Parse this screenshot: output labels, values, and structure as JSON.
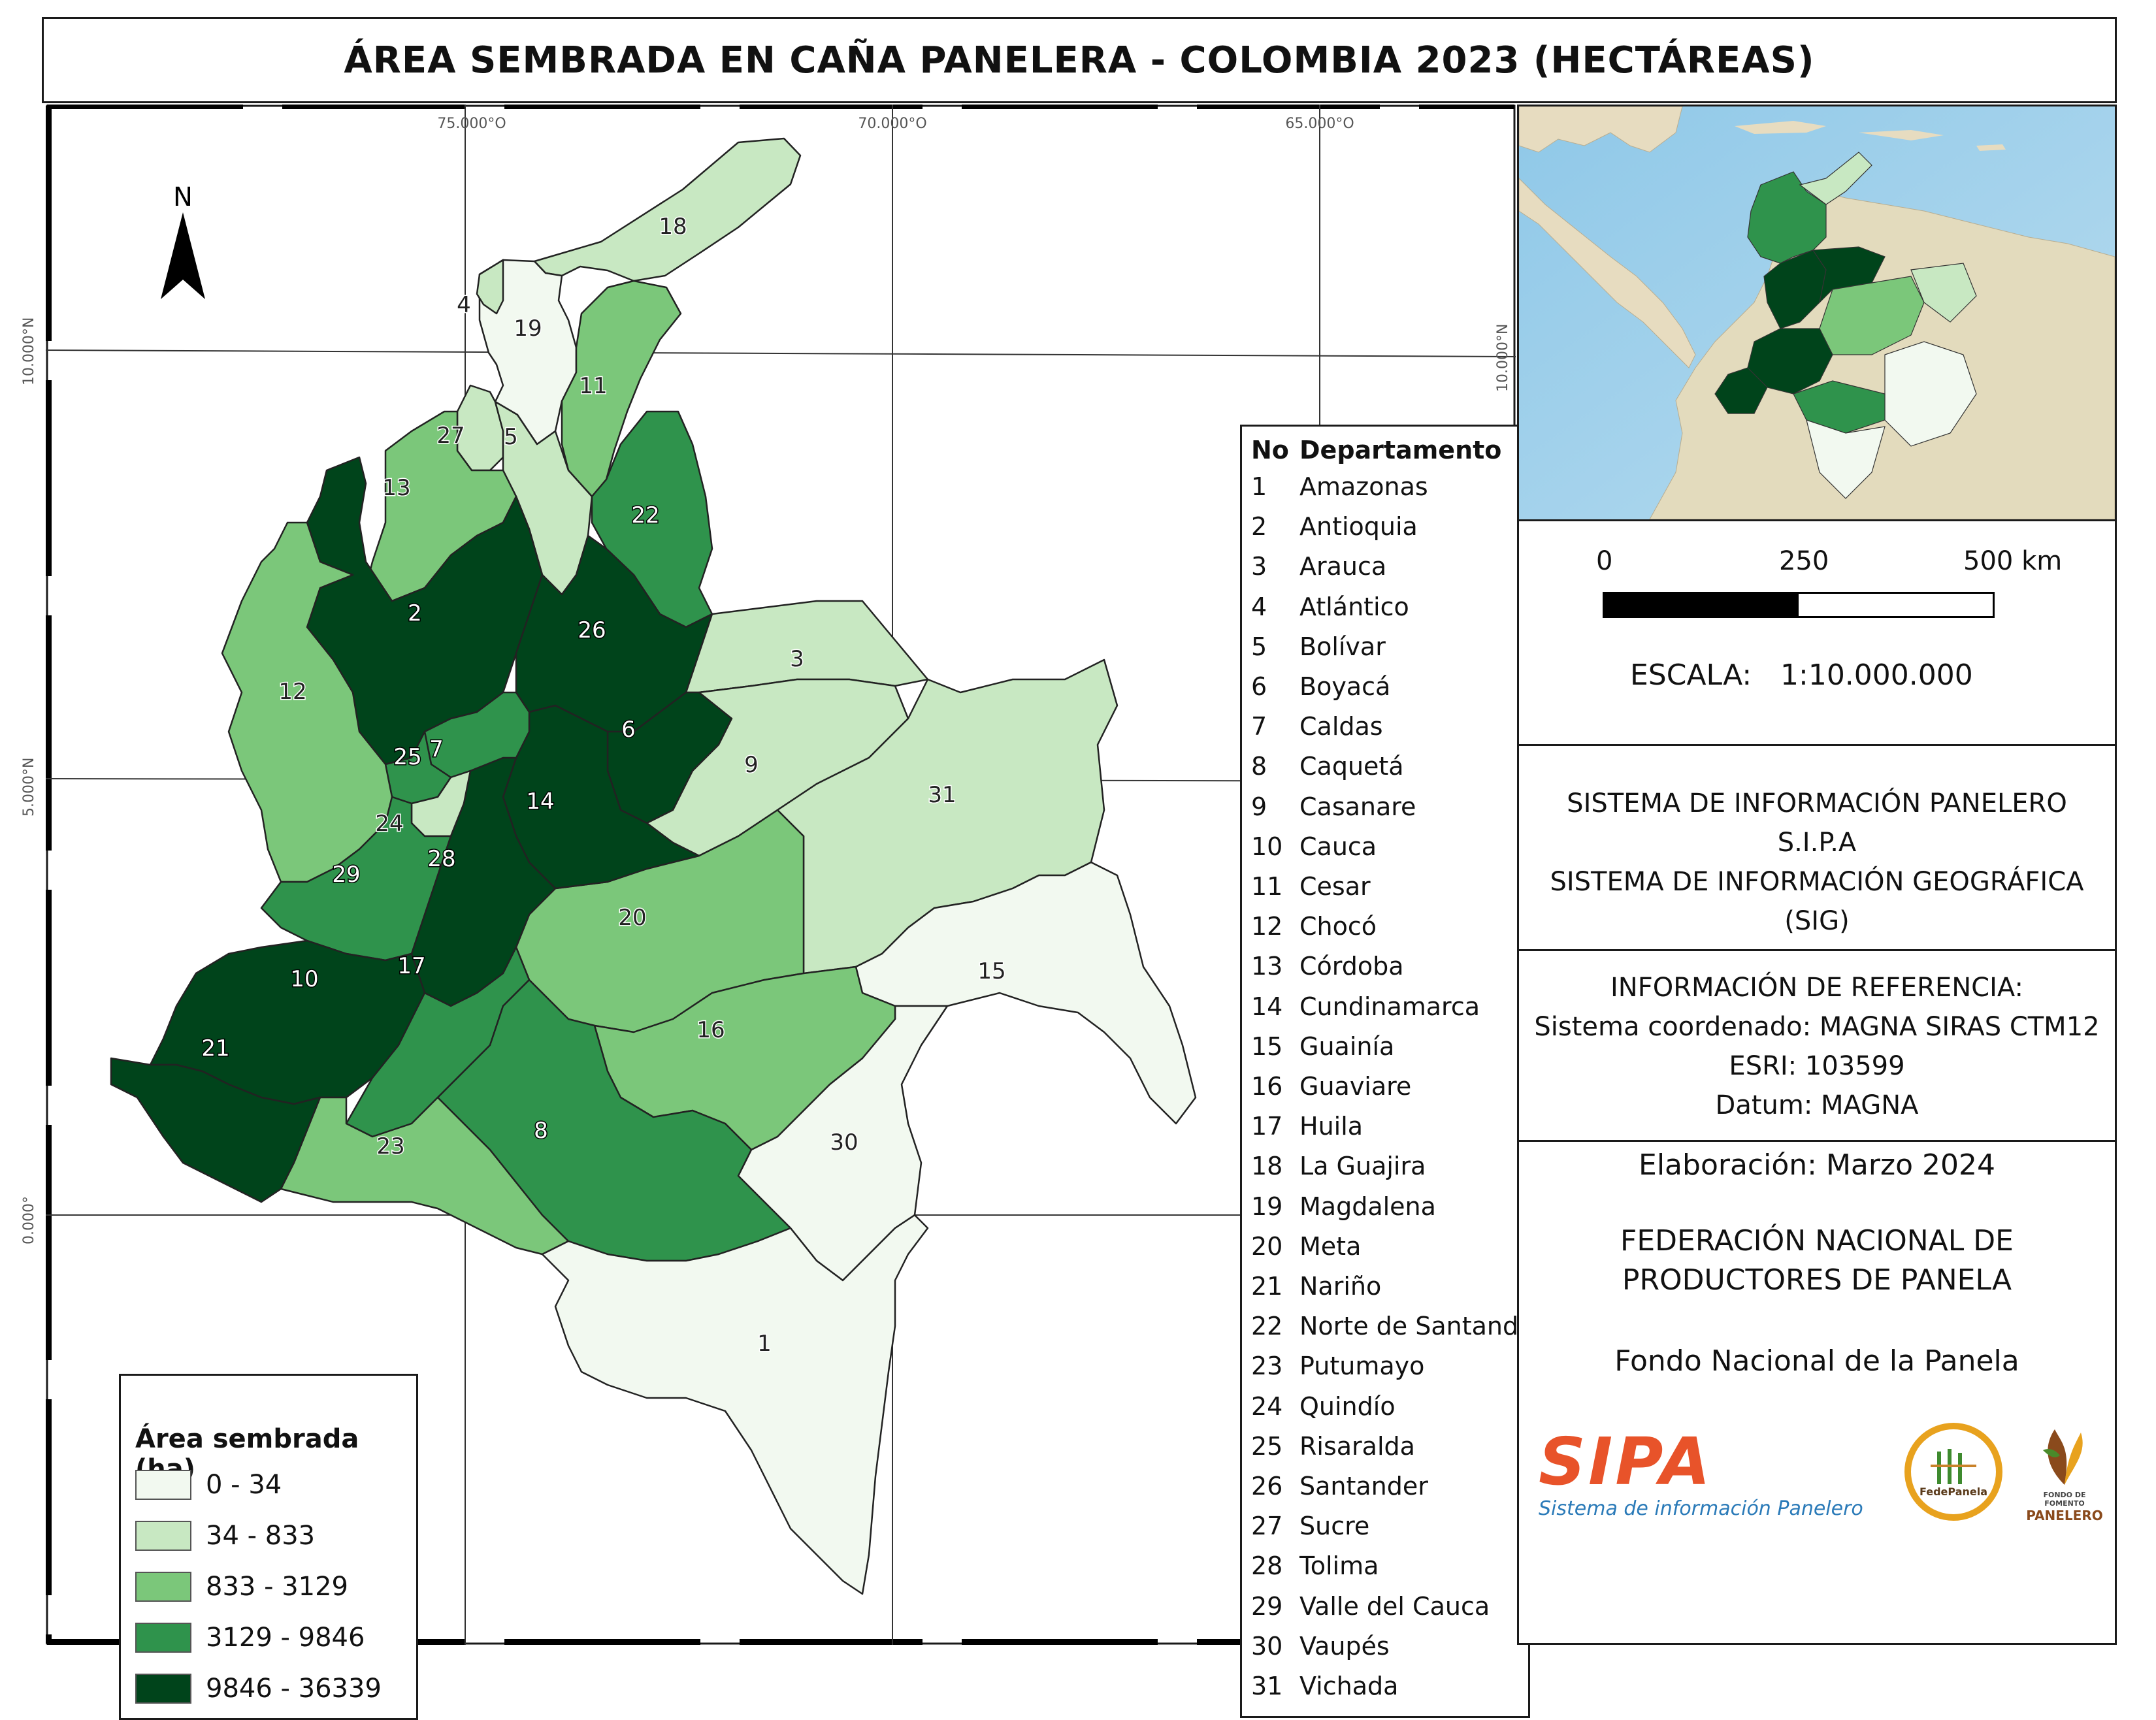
{
  "title": "ÁREA SEMBRADA EN CAÑA PANELERA - COLOMBIA 2023 (HECTÁREAS)",
  "graticule": {
    "lon_labels": [
      "75.000°O",
      "70.000°O",
      "65.000°O"
    ],
    "lat_labels": [
      "10.000°N",
      "5.000°N",
      "0.000°"
    ]
  },
  "north_arrow": "N",
  "legend_area": {
    "title": "Área sembrada (ha)",
    "classes": [
      {
        "label": "0 - 34",
        "color": "#f2f9f0"
      },
      {
        "label": "34 - 833",
        "color": "#c8e8c2"
      },
      {
        "label": "833 - 3129",
        "color": "#7bc77a"
      },
      {
        "label": "3129 - 9846",
        "color": "#2f934c"
      },
      {
        "label": "9846 - 36339",
        "color": "#00441b"
      }
    ]
  },
  "legend_departments": {
    "col_no": "No",
    "col_name": "Departamento",
    "rows": [
      {
        "no": "1",
        "name": "Amazonas"
      },
      {
        "no": "2",
        "name": "Antioquia"
      },
      {
        "no": "3",
        "name": "Arauca"
      },
      {
        "no": "4",
        "name": "Atlántico"
      },
      {
        "no": "5",
        "name": "Bolívar"
      },
      {
        "no": "6",
        "name": "Boyacá"
      },
      {
        "no": "7",
        "name": "Caldas"
      },
      {
        "no": "8",
        "name": "Caquetá"
      },
      {
        "no": "9",
        "name": "Casanare"
      },
      {
        "no": "10",
        "name": "Cauca"
      },
      {
        "no": "11",
        "name": "Cesar"
      },
      {
        "no": "12",
        "name": "Chocó"
      },
      {
        "no": "13",
        "name": "Córdoba"
      },
      {
        "no": "14",
        "name": "Cundinamarca"
      },
      {
        "no": "15",
        "name": "Guainía"
      },
      {
        "no": "16",
        "name": "Guaviare"
      },
      {
        "no": "17",
        "name": "Huila"
      },
      {
        "no": "18",
        "name": "La Guajira"
      },
      {
        "no": "19",
        "name": "Magdalena"
      },
      {
        "no": "20",
        "name": "Meta"
      },
      {
        "no": "21",
        "name": "Nariño"
      },
      {
        "no": "22",
        "name": "Norte de Santander"
      },
      {
        "no": "23",
        "name": "Putumayo"
      },
      {
        "no": "24",
        "name": "Quindío"
      },
      {
        "no": "25",
        "name": "Risaralda"
      },
      {
        "no": "26",
        "name": "Santander"
      },
      {
        "no": "27",
        "name": "Sucre"
      },
      {
        "no": "28",
        "name": "Tolima"
      },
      {
        "no": "29",
        "name": "Valle del Cauca"
      },
      {
        "no": "30",
        "name": "Vaupés"
      },
      {
        "no": "31",
        "name": "Vichada"
      }
    ]
  },
  "departments_class": {
    "1": 0,
    "2": 4,
    "3": 1,
    "4": 1,
    "5": 1,
    "6": 4,
    "7": 3,
    "8": 3,
    "9": 1,
    "10": 4,
    "11": 2,
    "12": 2,
    "13": 2,
    "14": 4,
    "15": 0,
    "16": 2,
    "17": 3,
    "18": 1,
    "19": 0,
    "20": 2,
    "21": 4,
    "22": 3,
    "23": 2,
    "24": 1,
    "25": 3,
    "26": 4,
    "27": 1,
    "28": 4,
    "29": 3,
    "30": 0,
    "31": 1
  },
  "scale": {
    "ticks": [
      "0",
      "250",
      "500 km"
    ],
    "label": "ESCALA:",
    "ratio": "1:10.000.000"
  },
  "system": {
    "l1": "SISTEMA DE INFORMACIÓN PANELERO",
    "l2": "S.I.P.A",
    "l3": "SISTEMA DE INFORMACIÓN GEOGRÁFICA",
    "l4": "(SIG)"
  },
  "reference": {
    "title": "INFORMACIÓN DE REFERENCIA:",
    "crs": "Sistema coordenado: MAGNA SIRAS CTM12",
    "esri": "ESRI: 103599",
    "datum": "Datum: MAGNA"
  },
  "elaboration": "Elaboración: Marzo 2024",
  "org": {
    "l1": "FEDERACIÓN NACIONAL DE",
    "l2": "PRODUCTORES DE PANELA",
    "l3": "Fondo Nacional de la Panela"
  },
  "logos": {
    "sipa_big": "SIPA",
    "sipa_sub": "Sistema de información Panelero",
    "fedepanela": "FedePanela",
    "fondo_l1": "FONDO DE FOMENTO",
    "fondo_l2": "PANELERO"
  },
  "colors": {
    "sipa_orange": "#e8532a",
    "sipa_blue": "#2a7ab8",
    "fedepanela_ring": "#e8a21e",
    "fondo_brown": "#8a4a1c"
  }
}
